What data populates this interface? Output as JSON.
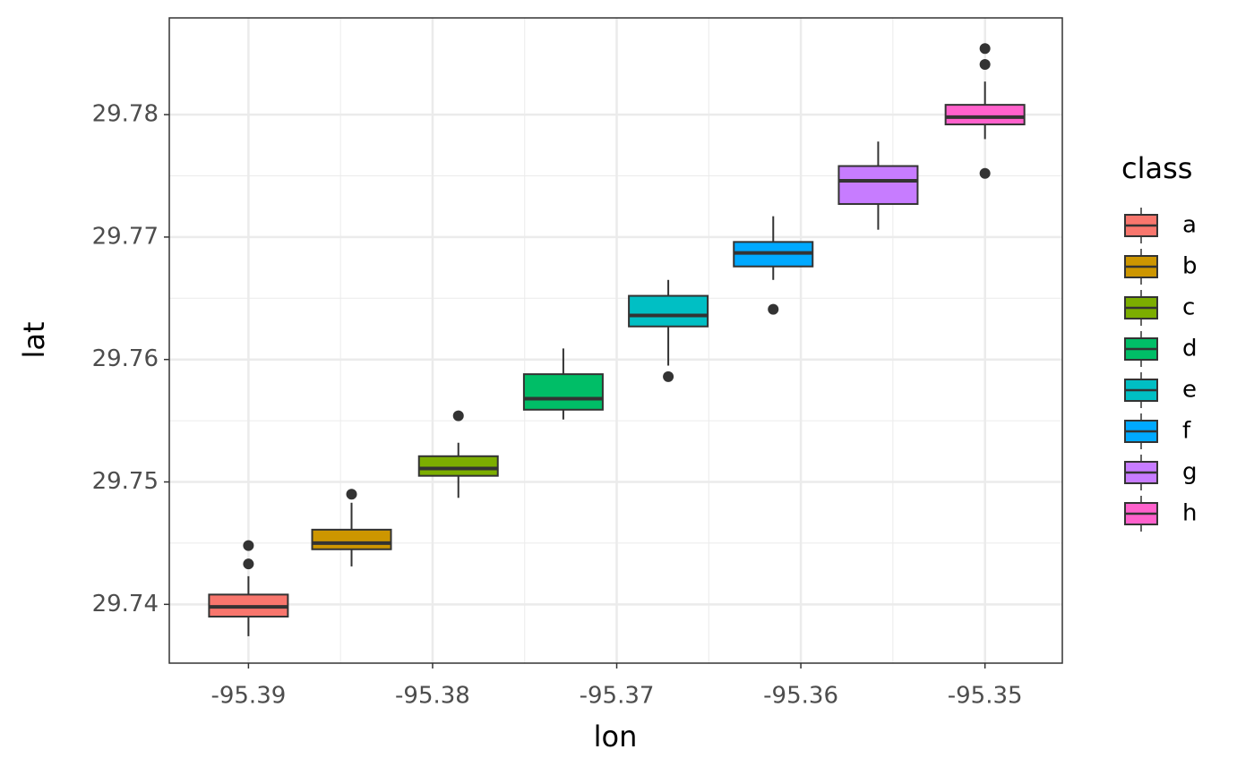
{
  "chart_data": {
    "type": "boxplot",
    "x_label": "lon",
    "y_label": "lat",
    "legend_title": "class",
    "xlim": [
      -95.3943,
      -95.3458
    ],
    "ylim": [
      29.7352,
      29.7879
    ],
    "xticks": [
      -95.39,
      -95.38,
      -95.37,
      -95.36,
      -95.35
    ],
    "yticks": [
      29.74,
      29.75,
      29.76,
      29.77,
      29.78
    ],
    "grid": true,
    "legend": "right",
    "series": [
      {
        "name": "a",
        "color": "#F8766D",
        "x": -95.39,
        "min": 29.7374,
        "q1": 29.739,
        "median": 29.7398,
        "q3": 29.7408,
        "max": 29.7423,
        "outliers": [
          29.7433,
          29.7448
        ]
      },
      {
        "name": "b",
        "color": "#CD9600",
        "x": -95.3844,
        "min": 29.7431,
        "q1": 29.7445,
        "median": 29.745,
        "q3": 29.7461,
        "max": 29.7483,
        "outliers": [
          29.749
        ]
      },
      {
        "name": "c",
        "color": "#7CAE00",
        "x": -95.3786,
        "min": 29.7487,
        "q1": 29.7505,
        "median": 29.7511,
        "q3": 29.7521,
        "max": 29.7532,
        "outliers": [
          29.7554
        ]
      },
      {
        "name": "d",
        "color": "#00BE67",
        "x": -95.3729,
        "min": 29.7551,
        "q1": 29.7559,
        "median": 29.7568,
        "q3": 29.7588,
        "max": 29.7609,
        "outliers": []
      },
      {
        "name": "e",
        "color": "#00BFC4",
        "x": -95.3672,
        "min": 29.7595,
        "q1": 29.7627,
        "median": 29.7636,
        "q3": 29.7652,
        "max": 29.7665,
        "outliers": [
          29.7586
        ]
      },
      {
        "name": "f",
        "color": "#00A9FF",
        "x": -95.3615,
        "min": 29.7665,
        "q1": 29.7676,
        "median": 29.7687,
        "q3": 29.7696,
        "max": 29.7717,
        "outliers": [
          29.7641
        ]
      },
      {
        "name": "g",
        "color": "#C77CFF",
        "x": -95.3558,
        "min": 29.7706,
        "q1": 29.7727,
        "median": 29.7746,
        "q3": 29.7758,
        "max": 29.7778,
        "outliers": []
      },
      {
        "name": "h",
        "color": "#FF61CC",
        "x": -95.35,
        "min": 29.778,
        "q1": 29.7792,
        "median": 29.7798,
        "q3": 29.7808,
        "max": 29.7827,
        "outliers": [
          29.7752,
          29.7841,
          29.7854
        ]
      }
    ]
  }
}
